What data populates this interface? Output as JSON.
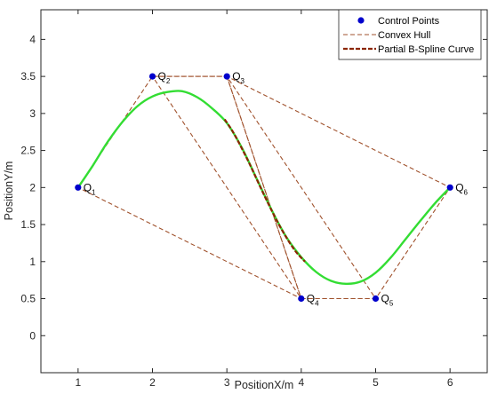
{
  "chart_data": {
    "type": "line",
    "xlabel": "PositionX/m",
    "ylabel": "PositionY/m",
    "xlim": [
      0.5,
      6.5
    ],
    "ylim": [
      -0.5,
      4.4
    ],
    "x_ticks": [
      1,
      2,
      3,
      4,
      5,
      6
    ],
    "y_ticks": [
      0,
      0.5,
      1,
      1.5,
      2,
      2.5,
      3,
      3.5,
      4
    ],
    "grid": false,
    "legend_position": "top-right",
    "colors": {
      "control_points": "#0000cc",
      "convex_hull": "#a0522d",
      "partial_curve": "#8b2500",
      "full_curve": "#33dd33"
    },
    "control_points": {
      "name": "Control Points",
      "points": [
        {
          "label": "Q",
          "sub": "1",
          "x": 1,
          "y": 2
        },
        {
          "label": "Q",
          "sub": "2",
          "x": 2,
          "y": 3.5
        },
        {
          "label": "Q",
          "sub": "3",
          "x": 3,
          "y": 3.5
        },
        {
          "label": "Q",
          "sub": "4",
          "x": 4,
          "y": 0.5
        },
        {
          "label": "Q",
          "sub": "5",
          "x": 5,
          "y": 0.5
        },
        {
          "label": "Q",
          "sub": "6",
          "x": 6,
          "y": 2
        }
      ]
    },
    "convex_hull": {
      "name": "Convex Hull",
      "polygons": [
        [
          [
            1,
            2
          ],
          [
            2,
            3.5
          ],
          [
            3,
            3.5
          ],
          [
            4,
            0.5
          ]
        ],
        [
          [
            2,
            3.5
          ],
          [
            3,
            3.5
          ],
          [
            5,
            0.5
          ],
          [
            4,
            0.5
          ]
        ],
        [
          [
            3,
            3.5
          ],
          [
            4,
            0.5
          ],
          [
            5,
            0.5
          ],
          [
            6,
            2
          ]
        ]
      ]
    },
    "partial_curve": {
      "name": "Partial B-Spline Curve",
      "x": [
        2.97,
        3.1,
        3.3,
        3.5,
        3.7,
        3.9,
        4.05
      ],
      "y": [
        2.92,
        2.72,
        2.33,
        1.9,
        1.5,
        1.17,
        1.0
      ]
    },
    "full_curve": {
      "x": [
        1.0,
        1.2,
        1.4,
        1.6,
        1.8,
        2.0,
        2.2,
        2.4,
        2.6,
        2.8,
        3.0,
        3.2,
        3.4,
        3.6,
        3.8,
        4.0,
        4.2,
        4.4,
        4.6,
        4.8,
        5.0,
        5.2,
        5.4,
        5.6,
        5.8,
        6.0
      ],
      "y": [
        2.0,
        2.3,
        2.62,
        2.89,
        3.1,
        3.23,
        3.29,
        3.3,
        3.22,
        3.07,
        2.87,
        2.54,
        2.12,
        1.7,
        1.33,
        1.06,
        0.86,
        0.74,
        0.7,
        0.73,
        0.85,
        1.05,
        1.3,
        1.55,
        1.79,
        2.0
      ]
    }
  }
}
